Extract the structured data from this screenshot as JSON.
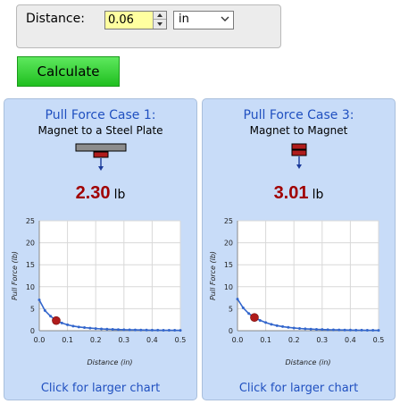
{
  "distance": {
    "label": "Distance:",
    "value": "0.06",
    "unit": "in"
  },
  "calculate_label": "Calculate",
  "icons": {
    "spin_up": "spinner-up-icon",
    "spin_down": "spinner-down-icon",
    "select": "chevron-down-icon",
    "case1": "magnet-steel-plate-icon",
    "case3": "magnet-to-magnet-icon"
  },
  "colors": {
    "panel_bg": "#c8dcf8",
    "title": "#2050c0",
    "value": "#a00000",
    "series": "#3366cc",
    "marker": "#b01c1c",
    "button": "#33cc33",
    "input_bg": "#ffffa0"
  },
  "panels": [
    {
      "title": "Pull Force Case 1:",
      "subtitle": "Magnet to a Steel Plate",
      "value": "2.30",
      "unit": "lb",
      "link": "Click for larger chart"
    },
    {
      "title": "Pull Force Case 3:",
      "subtitle": "Magnet to Magnet",
      "value": "3.01",
      "unit": "lb",
      "link": "Click for larger chart"
    }
  ],
  "chart_data": [
    {
      "type": "line",
      "title": "",
      "xlabel": "Distance (in)",
      "ylabel": "Pull Force (lb)",
      "xlim": [
        0,
        0.5
      ],
      "ylim": [
        0,
        25
      ],
      "xticks": [
        "0.0",
        "0.1",
        "0.2",
        "0.3",
        "0.4",
        "0.5"
      ],
      "yticks": [
        "0",
        "5",
        "10",
        "15",
        "20",
        "25"
      ],
      "grid": true,
      "x": [
        0,
        0.02,
        0.04,
        0.06,
        0.08,
        0.1,
        0.12,
        0.14,
        0.16,
        0.18,
        0.2,
        0.22,
        0.24,
        0.26,
        0.28,
        0.3,
        0.32,
        0.34,
        0.36,
        0.38,
        0.4,
        0.42,
        0.44,
        0.46,
        0.48,
        0.5
      ],
      "y": [
        7.0,
        4.6,
        3.3,
        2.3,
        1.75,
        1.35,
        1.05,
        0.85,
        0.7,
        0.58,
        0.48,
        0.41,
        0.35,
        0.3,
        0.26,
        0.23,
        0.2,
        0.18,
        0.16,
        0.14,
        0.13,
        0.12,
        0.11,
        0.1,
        0.09,
        0.08
      ],
      "highlight": {
        "x": 0.06,
        "y": 2.3
      }
    },
    {
      "type": "line",
      "title": "",
      "xlabel": "Distance (in)",
      "ylabel": "Pull Force (lb)",
      "xlim": [
        0,
        0.5
      ],
      "ylim": [
        0,
        25
      ],
      "xticks": [
        "0.0",
        "0.1",
        "0.2",
        "0.3",
        "0.4",
        "0.5"
      ],
      "yticks": [
        "0",
        "5",
        "10",
        "15",
        "20",
        "25"
      ],
      "grid": true,
      "x": [
        0,
        0.02,
        0.04,
        0.06,
        0.08,
        0.1,
        0.12,
        0.14,
        0.16,
        0.18,
        0.2,
        0.22,
        0.24,
        0.26,
        0.28,
        0.3,
        0.32,
        0.34,
        0.36,
        0.38,
        0.4,
        0.42,
        0.44,
        0.46,
        0.48,
        0.5
      ],
      "y": [
        7.2,
        5.2,
        3.9,
        3.0,
        2.35,
        1.85,
        1.45,
        1.15,
        0.93,
        0.76,
        0.62,
        0.51,
        0.43,
        0.36,
        0.31,
        0.27,
        0.23,
        0.2,
        0.18,
        0.16,
        0.14,
        0.13,
        0.12,
        0.1,
        0.09,
        0.08
      ],
      "highlight": {
        "x": 0.06,
        "y": 3.01
      }
    }
  ]
}
